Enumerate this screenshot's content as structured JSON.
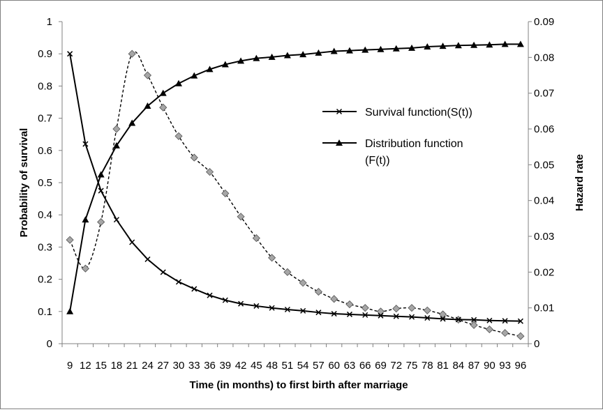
{
  "chart_data": {
    "type": "line",
    "title": "",
    "xlabel": "Time (in months)  to first birth after marriage",
    "ylabel": "Probability of survival",
    "y2label": "Hazard rate",
    "x": [
      9,
      12,
      15,
      18,
      21,
      24,
      27,
      30,
      33,
      36,
      39,
      42,
      45,
      48,
      51,
      54,
      57,
      60,
      63,
      66,
      69,
      72,
      75,
      78,
      81,
      84,
      87,
      90,
      93,
      96
    ],
    "ylim": [
      0,
      1
    ],
    "yticks": [
      "0",
      "0.1",
      "0.2",
      "0.3",
      "0.4",
      "0.5",
      "0.6",
      "0.7",
      "0.8",
      "0.9",
      "1"
    ],
    "y2lim": [
      0,
      0.09
    ],
    "y2ticks": [
      "0",
      "0.01",
      "0.02",
      "0.03",
      "0.04",
      "0.05",
      "0.06",
      "0.07",
      "0.08",
      "0.09"
    ],
    "series": [
      {
        "name": "Survival function(S(t))",
        "axis": "left",
        "marker": "x",
        "line": "solid",
        "values": [
          0.9,
          0.62,
          0.475,
          0.385,
          0.315,
          0.262,
          0.222,
          0.192,
          0.17,
          0.15,
          0.135,
          0.124,
          0.117,
          0.111,
          0.106,
          0.102,
          0.097,
          0.093,
          0.091,
          0.089,
          0.087,
          0.085,
          0.083,
          0.08,
          0.077,
          0.075,
          0.074,
          0.072,
          0.071,
          0.07
        ]
      },
      {
        "name": "Distribution function\n(F(t))",
        "axis": "left",
        "marker": "triangle",
        "line": "solid",
        "values": [
          0.1,
          0.385,
          0.525,
          0.615,
          0.685,
          0.738,
          0.778,
          0.808,
          0.832,
          0.852,
          0.867,
          0.878,
          0.886,
          0.89,
          0.895,
          0.898,
          0.903,
          0.908,
          0.91,
          0.912,
          0.914,
          0.916,
          0.918,
          0.922,
          0.924,
          0.926,
          0.927,
          0.928,
          0.93,
          0.93
        ]
      },
      {
        "name": "",
        "axis": "right",
        "marker": "diamond",
        "line": "dashed",
        "values": [
          0.029,
          0.021,
          0.034,
          0.06,
          0.081,
          0.075,
          0.066,
          0.058,
          0.052,
          0.048,
          0.042,
          0.0355,
          0.0295,
          0.024,
          0.02,
          0.017,
          0.0145,
          0.0125,
          0.011,
          0.01,
          0.009,
          0.0098,
          0.01,
          0.0093,
          0.0082,
          0.0067,
          0.0052,
          0.004,
          0.003,
          0.0021
        ]
      }
    ],
    "legend": {
      "position": "right-middle",
      "entries": [
        "Survival function(S(t))",
        "Distribution function",
        "(F(t))"
      ]
    },
    "grid": false
  }
}
